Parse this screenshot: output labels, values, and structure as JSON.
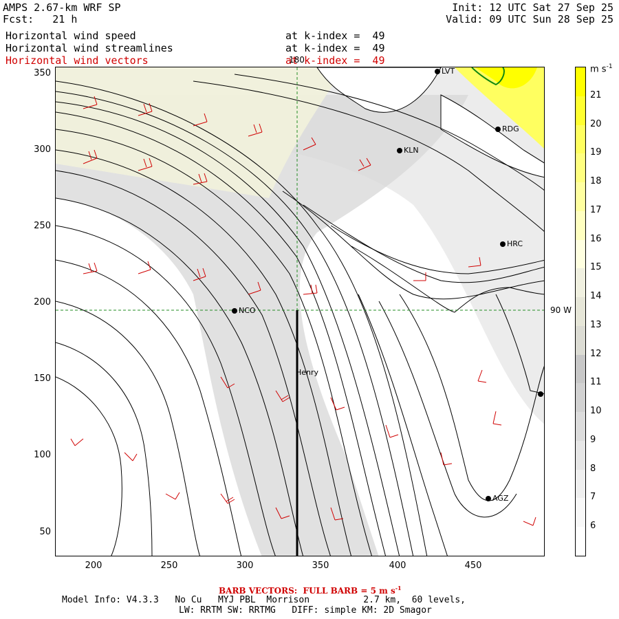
{
  "header": {
    "model": "AMPS 2.67-km WRF SP",
    "fcst": "Fcst:   21 h",
    "init": "Init: 12 UTC Sat 27 Sep 25",
    "valid": "Valid: 09 UTC Sun 28 Sep 25",
    "fields": [
      {
        "name": "Horizontal wind speed",
        "level": "at k-index =  49",
        "color": "#000000"
      },
      {
        "name": "Horizontal wind streamlines",
        "level": "at k-index =  49",
        "color": "#000000"
      },
      {
        "name": "Horizontal wind vectors",
        "level": "at k-index =  49",
        "color": "#d00000"
      }
    ]
  },
  "map": {
    "x_ticks": [
      "200",
      "250",
      "300",
      "350",
      "400",
      "450"
    ],
    "y_ticks": [
      "350",
      "300",
      "250",
      "200",
      "150",
      "100",
      "50"
    ],
    "xlim": [
      175,
      495
    ],
    "ylim": [
      35,
      355
    ],
    "grid_label_lon": "180",
    "grid_label_lat": "90 W",
    "stations": [
      {
        "id": "LVT",
        "label": "LVT"
      },
      {
        "id": "RDG",
        "label": "RDG"
      },
      {
        "id": "KLN",
        "label": "KLN"
      },
      {
        "id": "HRC",
        "label": "HRC"
      },
      {
        "id": "NCO",
        "label": "NCO"
      },
      {
        "id": "HENRY",
        "label": "Henry"
      },
      {
        "id": "AGZ",
        "label": "AGZ"
      }
    ]
  },
  "colorbar": {
    "unit": "m s",
    "unit_exp": "-1",
    "labels": [
      "21",
      "20",
      "19",
      "18",
      "17",
      "16",
      "15",
      "14",
      "13",
      "12",
      "11",
      "10",
      "9",
      "8",
      "7",
      "6"
    ],
    "colors": [
      "#ffff00",
      "#ffff30",
      "#ffff60",
      "#ffff80",
      "#ffffa0",
      "#ffffc0",
      "#ffffe0",
      "#f0f0e0",
      "#e6e6d8",
      "#dcdcd4",
      "#c8c8c8",
      "#d2d2d2",
      "#dcdcdc",
      "#e6e6e6",
      "#efefef",
      "#f8f8f8",
      "#ffffff"
    ]
  },
  "footer": {
    "barb_text": "BARB VECTORS:  FULL BARB = 5 m s",
    "barb_exp": "-1",
    "model_info": "Model Info: V4.3.3   No Cu   MYJ PBL  Morrison          2.7 km,  60 levels,",
    "physics": "LW: RRTM SW: RRTMG   DIFF: simple KM: 2D Smagor"
  }
}
